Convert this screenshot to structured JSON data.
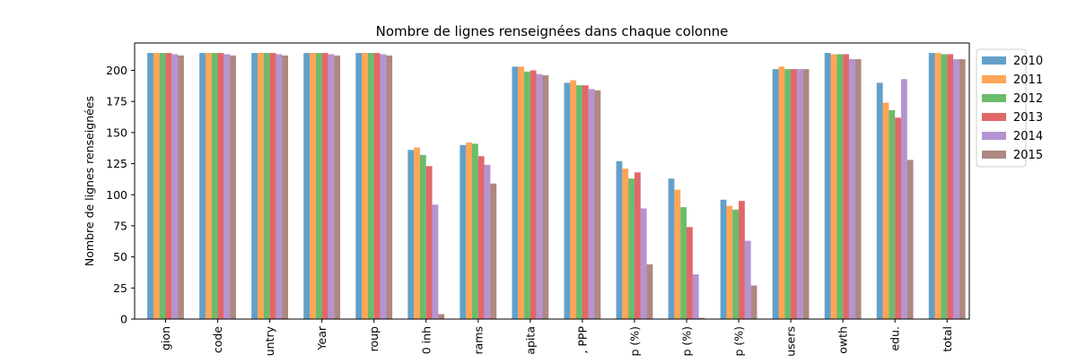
{
  "chart_data": {
    "type": "bar",
    "title": "Nombre de lignes renseignées dans chaque colonne",
    "xlabel": "",
    "ylabel": "Nombre de lignes renseignées",
    "ylim": [
      0,
      222
    ],
    "yticks": [
      0,
      25,
      50,
      75,
      100,
      125,
      150,
      175,
      200
    ],
    "grid": false,
    "legend_position": "outside-top-right",
    "categories": [
      "gion",
      "code",
      "untry",
      "Year",
      "roup",
      "0 inh",
      "rams",
      "apita",
      ", PPP",
      "p (%)",
      "p (%)",
      "p (%)",
      "users",
      "owth",
      "edu.",
      "total"
    ],
    "series": [
      {
        "name": "2010",
        "color": "#1f77b4",
        "values": [
          214,
          214,
          214,
          214,
          214,
          136,
          140,
          203,
          190,
          127,
          113,
          96,
          201,
          214,
          190,
          214
        ]
      },
      {
        "name": "2011",
        "color": "#ff7f0e",
        "values": [
          214,
          214,
          214,
          214,
          214,
          138,
          142,
          203,
          192,
          121,
          104,
          91,
          203,
          213,
          174,
          214
        ]
      },
      {
        "name": "2012",
        "color": "#2ca02c",
        "values": [
          214,
          214,
          214,
          214,
          214,
          132,
          141,
          199,
          188,
          113,
          90,
          88,
          201,
          213,
          168,
          213
        ]
      },
      {
        "name": "2013",
        "color": "#d62728",
        "values": [
          214,
          214,
          214,
          214,
          214,
          123,
          131,
          200,
          188,
          118,
          74,
          95,
          201,
          213,
          162,
          213
        ]
      },
      {
        "name": "2014",
        "color": "#9467bd",
        "values": [
          213,
          213,
          213,
          213,
          213,
          92,
          124,
          197,
          185,
          89,
          36,
          63,
          201,
          209,
          193,
          209
        ]
      },
      {
        "name": "2015",
        "color": "#8c564b",
        "values": [
          212,
          212,
          212,
          212,
          212,
          4,
          109,
          196,
          184,
          44,
          1,
          27,
          201,
          209,
          128,
          209
        ]
      }
    ]
  }
}
